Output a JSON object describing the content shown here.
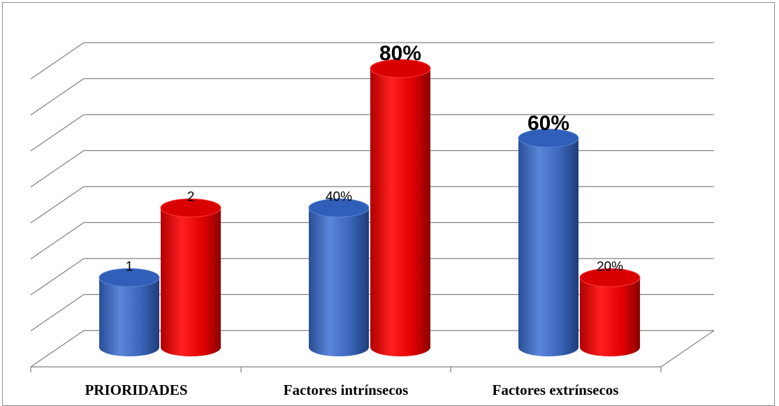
{
  "chart_data": {
    "type": "bar",
    "style": "3d-cylinder",
    "categories": [
      "PRIORIDADES",
      "Factores intrínsecos",
      "Factores extrínsecos"
    ],
    "series": [
      {
        "color": "#3F6CC4",
        "values": [
          1,
          2,
          3
        ]
      },
      {
        "color": "#E00000",
        "values": [
          2,
          4,
          1
        ]
      }
    ],
    "data_labels": [
      [
        "1",
        "40%",
        "60%"
      ],
      [
        "2",
        "80%",
        "20%"
      ]
    ],
    "emphasized_labels": [
      "80%",
      "60%"
    ],
    "ylim": [
      0,
      4.6
    ],
    "grid": true,
    "legend": "none"
  }
}
